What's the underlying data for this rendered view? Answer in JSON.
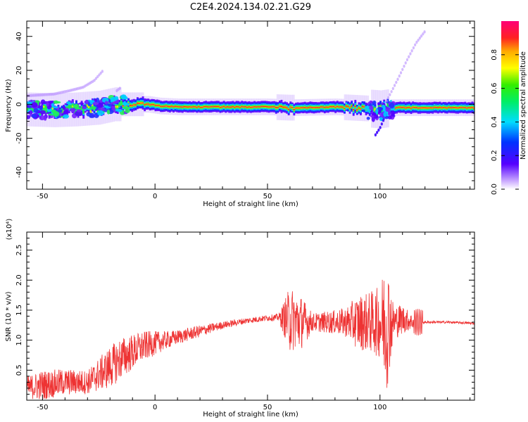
{
  "title": "C2E4.2024.134.02.21.G29",
  "chart_data": [
    {
      "type": "heatmap",
      "xlabel": "Height of straight line (km)",
      "ylabel": "Frequency (Hz)",
      "xlim": [
        -57,
        142
      ],
      "ylim": [
        -50,
        49
      ],
      "xticks": [
        -50,
        0,
        50,
        100
      ],
      "yticks": [
        -40,
        -20,
        0,
        20,
        40
      ],
      "colorbar": {
        "label": "Normalized spectral amplitude",
        "range": [
          0,
          1
        ],
        "ticks": [
          "0.0",
          "0.2",
          "0.4",
          "0.6",
          "0.8"
        ]
      },
      "ridge": {
        "x": [
          -57,
          -45,
          -35,
          -25,
          -18,
          -12,
          -8,
          -3,
          2,
          10,
          30,
          50,
          60,
          80,
          95,
          100,
          105,
          120,
          142
        ],
        "freq": [
          -3,
          -3.5,
          -3,
          -2,
          0,
          0,
          0,
          0,
          -1,
          -1.5,
          -1.5,
          -1.5,
          -2,
          -1.5,
          -2.5,
          -3,
          -2,
          -2,
          -2
        ]
      },
      "secondary_traces": [
        {
          "x": [
            -57,
            -45,
            -38,
            -32,
            -27,
            -23
          ],
          "freq": [
            5,
            6,
            8,
            10,
            14,
            20
          ]
        },
        {
          "x": [
            -17,
            -15
          ],
          "freq": [
            8,
            10
          ]
        },
        {
          "x": [
            103,
            108,
            112,
            116,
            120
          ],
          "freq": [
            2,
            15,
            26,
            36,
            43
          ]
        },
        {
          "x": [
            98,
            100,
            102
          ],
          "freq": [
            -18,
            -14,
            -8
          ]
        }
      ]
    },
    {
      "type": "line",
      "xlabel": "Height of straight line (km)",
      "ylabel": "SNR (10 * v/v)",
      "y_multiplier": "(x10⁴)",
      "xlim": [
        -57,
        142
      ],
      "ylim": [
        0,
        2.8
      ],
      "xticks": [
        -50,
        0,
        50,
        100
      ],
      "yticks": [
        0.5,
        1.0,
        1.5,
        2.0,
        2.5
      ],
      "ytick_labels": [
        "0.5",
        "1.0",
        "1.5",
        "2.0",
        "2.5"
      ],
      "color": "#ee3333",
      "envelope": {
        "x": [
          -57,
          -50,
          -40,
          -30,
          -20,
          -15,
          -10,
          -5,
          0,
          5,
          10,
          20,
          30,
          40,
          50,
          55,
          60,
          65,
          70,
          80,
          85,
          90,
          95,
          100,
          103,
          106,
          110,
          115,
          120,
          130,
          142
        ],
        "mean": [
          0.2,
          0.25,
          0.3,
          0.3,
          0.55,
          0.7,
          0.8,
          0.9,
          0.95,
          1.0,
          1.05,
          1.15,
          1.25,
          1.32,
          1.37,
          1.38,
          1.35,
          1.3,
          1.3,
          1.3,
          1.3,
          1.3,
          1.3,
          1.3,
          1.3,
          1.3,
          1.35,
          1.3,
          1.3,
          1.3,
          1.28
        ],
        "amp": [
          0.2,
          0.25,
          0.22,
          0.2,
          0.35,
          0.35,
          0.3,
          0.25,
          0.2,
          0.15,
          0.12,
          0.1,
          0.06,
          0.05,
          0.05,
          0.06,
          0.55,
          0.45,
          0.15,
          0.2,
          0.25,
          0.45,
          0.5,
          0.6,
          1.15,
          0.3,
          0.25,
          0.1,
          0.02,
          0.02,
          0.02
        ]
      }
    }
  ]
}
